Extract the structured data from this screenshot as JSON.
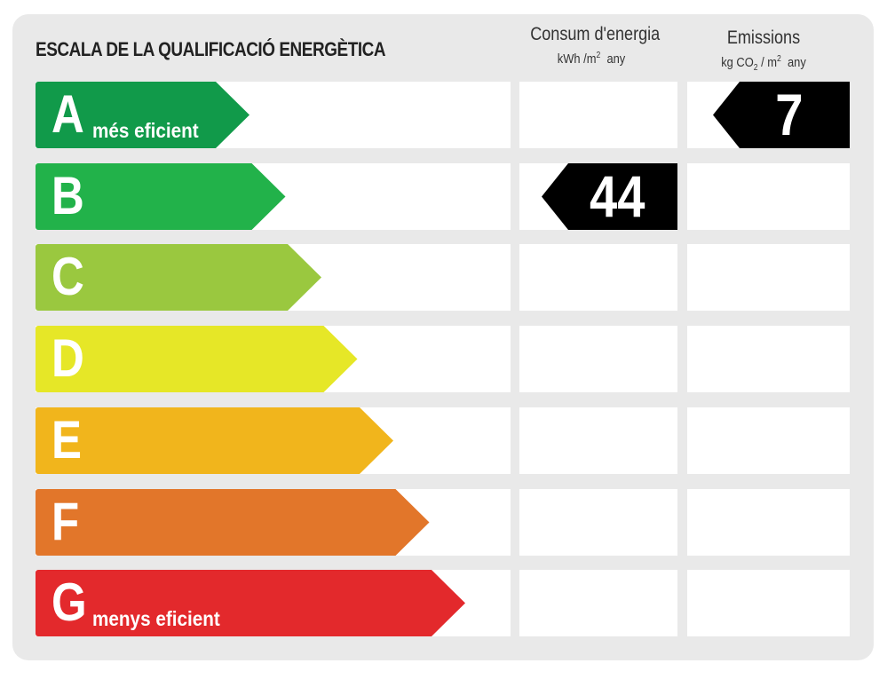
{
  "title": "ESCALA DE LA QUALIFICACIÓ ENERGÈTICA",
  "columns": {
    "consumption": {
      "label": "Consum d'energia",
      "unit_prefix": "kWh /m",
      "unit_sup": "2",
      "unit_suffix": "any"
    },
    "emissions": {
      "label": "Emissions",
      "unit_prefix": "kg CO",
      "unit_sub": "2",
      "unit_mid": " / m",
      "unit_sup": "2",
      "unit_suffix": "any"
    }
  },
  "classes": [
    {
      "letter": "A",
      "sublabel": "més eficient",
      "color": "#119a4a"
    },
    {
      "letter": "B",
      "sublabel": "",
      "color": "#22b24a"
    },
    {
      "letter": "C",
      "sublabel": "",
      "color": "#9ac83f"
    },
    {
      "letter": "D",
      "sublabel": "",
      "color": "#e6e727"
    },
    {
      "letter": "E",
      "sublabel": "",
      "color": "#f1b51c"
    },
    {
      "letter": "F",
      "sublabel": "",
      "color": "#e2762a"
    },
    {
      "letter": "G",
      "sublabel": "menys eficient",
      "color": "#e3292c"
    }
  ],
  "consumption_rating": {
    "class": "B",
    "value": "44"
  },
  "emissions_rating": {
    "class": "A",
    "value": "7"
  }
}
